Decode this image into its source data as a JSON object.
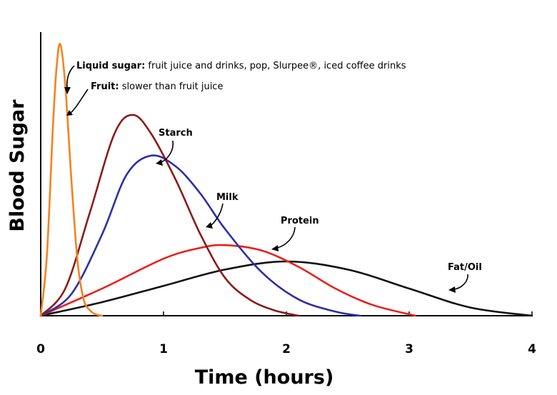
{
  "chart_data": {
    "type": "line",
    "xlabel": "Time (hours)",
    "ylabel": "Blood Sugar",
    "xlim": [
      0,
      4
    ],
    "ylim": [
      0,
      100
    ],
    "xticks": [
      "0",
      "1",
      "2",
      "3",
      "4"
    ],
    "grid": false,
    "yticks_shown": false,
    "series": [
      {
        "name": "Liquid sugar",
        "color": "#f5821f",
        "x": [
          0,
          0.05,
          0.1,
          0.13,
          0.16,
          0.2,
          0.25,
          0.3,
          0.35,
          0.4,
          0.45,
          0.5
        ],
        "y": [
          0,
          22,
          70,
          92,
          100,
          85,
          50,
          20,
          6,
          2,
          0.5,
          0
        ]
      },
      {
        "name": "Starch",
        "color": "#8b1a1a",
        "x": [
          0,
          0.2,
          0.4,
          0.6,
          0.75,
          0.9,
          1.1,
          1.3,
          1.5,
          1.7,
          1.9,
          2.1
        ],
        "y": [
          0,
          10,
          38,
          67,
          74,
          67,
          50,
          30,
          14,
          6,
          2,
          0
        ]
      },
      {
        "name": "Milk",
        "color": "#2e2ea8",
        "x": [
          0,
          0.25,
          0.5,
          0.7,
          0.9,
          1.1,
          1.3,
          1.5,
          1.8,
          2.1,
          2.4,
          2.6
        ],
        "y": [
          0,
          8,
          30,
          52,
          59,
          55,
          45,
          32,
          16,
          6,
          1.5,
          0
        ]
      },
      {
        "name": "Protein",
        "color": "#e8201a",
        "x": [
          0,
          0.5,
          1.0,
          1.3,
          1.5,
          1.8,
          2.1,
          2.4,
          2.7,
          3.05
        ],
        "y": [
          0,
          10,
          21,
          25,
          26,
          24,
          18,
          10,
          4,
          0
        ]
      },
      {
        "name": "Fat/Oil",
        "color": "#111111",
        "x": [
          0,
          0.5,
          1.0,
          1.5,
          2.0,
          2.5,
          3.0,
          3.5,
          4.0
        ],
        "y": [
          0,
          5,
          11,
          17,
          20,
          17,
          10,
          3,
          0
        ]
      }
    ],
    "annotations": [
      {
        "bold": "Liquid sugar:",
        "text": " fruit juice and drinks, pop, Slurpee®, iced coffee drinks"
      },
      {
        "bold": "Fruit:",
        "text": " slower than fruit juice"
      },
      {
        "bold": "Starch",
        "text": ""
      },
      {
        "bold": "Milk",
        "text": ""
      },
      {
        "bold": "Protein",
        "text": ""
      },
      {
        "bold": "Fat/Oil",
        "text": ""
      }
    ]
  }
}
